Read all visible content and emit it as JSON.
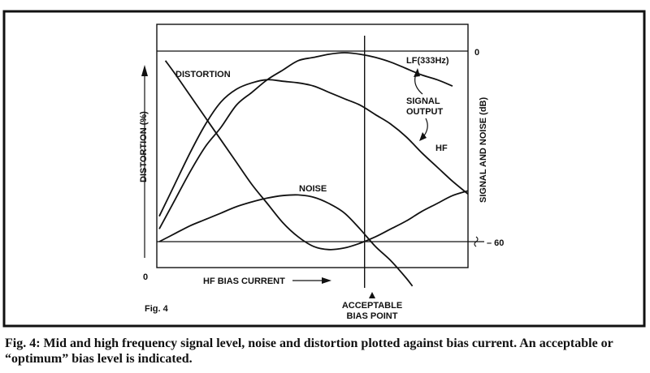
{
  "caption": "Fig. 4: Mid and high frequency signal level, noise and distortion plotted against bias current. An acceptable or “optimum” bias level is indicated.",
  "chart_data": {
    "type": "line",
    "fig_label": "Fig. 4",
    "xlabel": "HF BIAS CURRENT",
    "ylabel_left": "DISTORTION (%)",
    "ylabel_right": "SIGNAL AND NOISE (dB)",
    "x_origin_label": "0",
    "y_left_origin_label": "0",
    "right_ticks": [
      {
        "value": 0,
        "label": "0"
      },
      {
        "value": -60,
        "label": "– 60"
      }
    ],
    "xlim": [
      0,
      100
    ],
    "ylim_right": [
      -75,
      0
    ],
    "annotation": {
      "label_line1": "ACCEPTABLE",
      "label_line2": "BIAS POINT",
      "x": 66.5
    },
    "signal_output_label_line1": "SIGNAL",
    "signal_output_label_line2": "OUTPUT",
    "series": [
      {
        "name": "LF(333Hz)",
        "x": [
          0,
          5,
          10,
          15,
          20,
          25,
          30,
          35,
          40,
          45,
          50,
          55,
          60,
          65,
          70,
          75,
          80,
          85,
          90,
          95
        ],
        "y": [
          -56,
          -47,
          -38,
          -30,
          -24,
          -17,
          -13,
          -9,
          -6,
          -3,
          -2,
          -1,
          -0.5,
          -1,
          -2,
          -3.5,
          -5.5,
          -7.5,
          -9,
          -11
        ]
      },
      {
        "name": "HF",
        "x": [
          0,
          5,
          10,
          15,
          20,
          25,
          30,
          35,
          40,
          45,
          50,
          55,
          60,
          65,
          70,
          75,
          80,
          85,
          90,
          95,
          100
        ],
        "y": [
          -52,
          -42,
          -32,
          -23,
          -16,
          -12,
          -10,
          -9,
          -9.5,
          -10,
          -11,
          -13,
          -15,
          -17,
          -20,
          -23,
          -27,
          -32,
          -36.5,
          -41,
          -45
        ]
      },
      {
        "name": "NOISE",
        "x": [
          0,
          5,
          10,
          15,
          20,
          25,
          30,
          35,
          40,
          45,
          50,
          55,
          60,
          65,
          70,
          75,
          80,
          82
        ],
        "y": [
          -60,
          -57.5,
          -55,
          -53,
          -51,
          -49,
          -47.5,
          -46.3,
          -45.5,
          -45.3,
          -46,
          -48,
          -51,
          -56,
          -61.5,
          -66,
          -71.5,
          -74
        ]
      },
      {
        "name": "DISTORTION",
        "x": [
          2,
          5,
          10,
          15,
          20,
          25,
          30,
          35,
          40,
          45,
          50,
          55,
          60,
          65,
          70,
          75,
          80,
          85,
          90,
          95,
          100
        ],
        "y": [
          -3,
          -7,
          -14,
          -21,
          -28,
          -35,
          -42,
          -48,
          -54,
          -58.5,
          -61.5,
          -62.5,
          -62,
          -60.5,
          -58.5,
          -56,
          -53.5,
          -50.5,
          -48,
          -45.5,
          -44
        ]
      }
    ]
  }
}
